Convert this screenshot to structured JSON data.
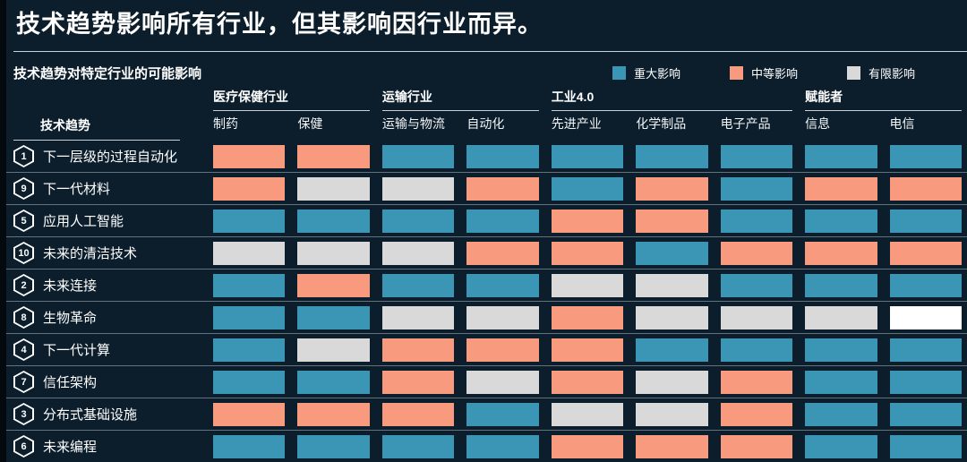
{
  "title": "技术趋势影响所有行业，但其影响因行业而异。",
  "subtitle": "技术趋势对特定行业的可能影响",
  "legend": [
    {
      "label": "重大影响",
      "color": "#3a96b4"
    },
    {
      "label": "中等影响",
      "color": "#f79a7e"
    },
    {
      "label": "有限影响",
      "color": "#d9d9d9"
    }
  ],
  "chart_data": {
    "type": "heatmap",
    "title": "技术趋势对特定行业的可能影响",
    "trend_header": "技术趋势",
    "legend_position": "top-right",
    "levels": {
      "S": "重大影响",
      "M": "中等影响",
      "L": "有限影响",
      "W": "有限影响"
    },
    "colors": {
      "S": "#3a96b4",
      "M": "#f79a7e",
      "L": "#d9d9d9",
      "W": "#ffffff"
    },
    "column_groups": [
      {
        "label": "医疗保健行业",
        "columns": [
          "制药",
          "保健"
        ]
      },
      {
        "label": "运输行业",
        "columns": [
          "运输与物流",
          "自动化"
        ]
      },
      {
        "label": "工业4.0",
        "columns": [
          "先进产业",
          "化学制品",
          "电子产品"
        ]
      },
      {
        "label": "赋能者",
        "columns": [
          "信息",
          "电信"
        ]
      }
    ],
    "rows": [
      {
        "num": "1",
        "label": "下一层级的过程自动化",
        "impacts": [
          "M",
          "M",
          "S",
          "S",
          "S",
          "S",
          "S",
          "S",
          "S"
        ]
      },
      {
        "num": "9",
        "label": "下一代材料",
        "impacts": [
          "M",
          "L",
          "L",
          "M",
          "S",
          "M",
          "S",
          "M",
          "M"
        ]
      },
      {
        "num": "5",
        "label": "应用人工智能",
        "impacts": [
          "S",
          "S",
          "S",
          "S",
          "M",
          "M",
          "S",
          "S",
          "S"
        ]
      },
      {
        "num": "10",
        "label": "未来的清洁技术",
        "impacts": [
          "L",
          "L",
          "L",
          "M",
          "M",
          "S",
          "M",
          "M",
          "M"
        ]
      },
      {
        "num": "2",
        "label": "未来连接",
        "impacts": [
          "S",
          "M",
          "S",
          "S",
          "L",
          "L",
          "S",
          "S",
          "S"
        ]
      },
      {
        "num": "8",
        "label": "生物革命",
        "impacts": [
          "S",
          "S",
          "L",
          "L",
          "M",
          "L",
          "L",
          "L",
          "W"
        ]
      },
      {
        "num": "4",
        "label": "下一代计算",
        "impacts": [
          "S",
          "L",
          "M",
          "M",
          "M",
          "S",
          "S",
          "S",
          "S"
        ]
      },
      {
        "num": "7",
        "label": "信任架构",
        "impacts": [
          "S",
          "S",
          "M",
          "L",
          "M",
          "L",
          "M",
          "S",
          "S"
        ]
      },
      {
        "num": "3",
        "label": "分布式基础设施",
        "impacts": [
          "M",
          "M",
          "M",
          "S",
          "L",
          "L",
          "M",
          "S",
          "S"
        ]
      },
      {
        "num": "6",
        "label": "未来编程",
        "impacts": [
          "S",
          "S",
          "S",
          "S",
          "M",
          "M",
          "M",
          "S",
          "S"
        ]
      }
    ]
  }
}
